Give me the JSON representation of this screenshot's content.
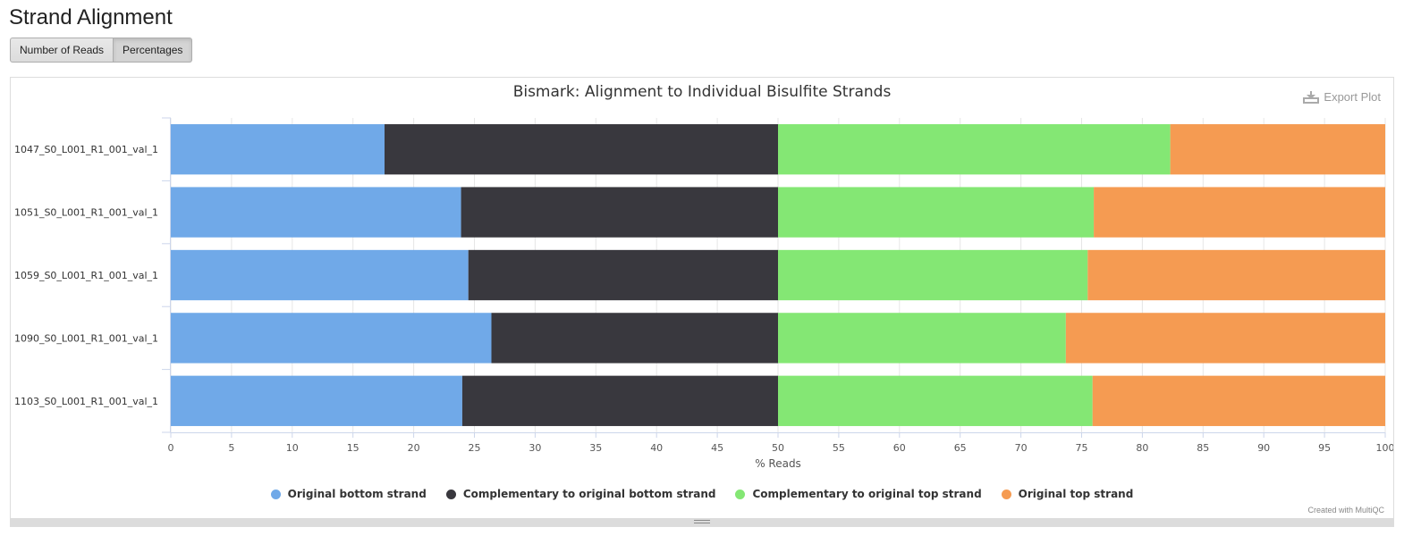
{
  "section": {
    "title": "Strand Alignment"
  },
  "buttons": {
    "reads_label": "Number of Reads",
    "percent_label": "Percentages"
  },
  "plot": {
    "export_label": "Export Plot",
    "credit": "Created with MultiQC"
  },
  "colors": {
    "ob": "#70a9e8",
    "ctob": "#39383e",
    "ctot": "#84e774",
    "ot": "#f59b52",
    "grid": "#e6e6e6",
    "axis": "#ccd6eb"
  },
  "chart_data": {
    "type": "bar",
    "orientation": "horizontal",
    "stacked": "percent",
    "title": "Bismark: Alignment to Individual Bisulfite Strands",
    "xlabel": "% Reads",
    "ylabel": "",
    "xlim": [
      0,
      100
    ],
    "xticks": [
      0,
      5,
      10,
      15,
      20,
      25,
      30,
      35,
      40,
      45,
      50,
      55,
      60,
      65,
      70,
      75,
      80,
      85,
      90,
      95,
      100
    ],
    "categories": [
      "1047_S0_L001_R1_001_val_1",
      "1051_S0_L001_R1_001_val_1",
      "1059_S0_L001_R1_001_val_1",
      "1090_S0_L001_R1_001_val_1",
      "1103_S0_L001_R1_001_val_1"
    ],
    "series": [
      {
        "name": "Original bottom strand",
        "color_key": "ob",
        "values": [
          17.6,
          23.9,
          24.5,
          26.4,
          24.0
        ]
      },
      {
        "name": "Complementary to original bottom strand",
        "color_key": "ctob",
        "values": [
          32.4,
          26.1,
          25.5,
          23.6,
          26.0
        ]
      },
      {
        "name": "Complementary to original top strand",
        "color_key": "ctot",
        "values": [
          32.3,
          26.0,
          25.5,
          23.7,
          25.9
        ]
      },
      {
        "name": "Original top strand",
        "color_key": "ot",
        "values": [
          17.7,
          24.0,
          24.5,
          26.3,
          24.1
        ]
      }
    ],
    "grid": true,
    "legend_position": "bottom-center"
  }
}
